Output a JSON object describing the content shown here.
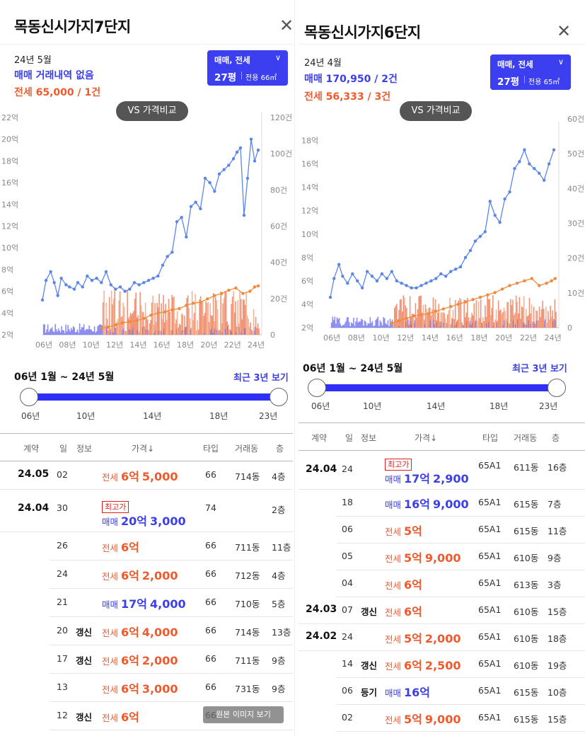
{
  "left": {
    "title": "목동신시가지7단지",
    "close_glyph": "✕",
    "month": "24년 5월",
    "sale_line": "매매 거래내역 없음",
    "jeonse_line": "전세 65,000 / 1건",
    "type_box": {
      "deal": "매매, 전세",
      "size": "27평",
      "area": "전용 66㎡"
    },
    "vs_button": "VS 가격비교",
    "range_label": "06년 1월 ~ 24년 5월",
    "recent_link": "최근 3년 보기",
    "slider_ticks": [
      "06년",
      "10년",
      "14년",
      "18년",
      "23년"
    ],
    "headers": [
      "계약",
      "일",
      "정보",
      "가격↓",
      "타입",
      "거래동",
      "층"
    ],
    "rows": [
      {
        "date": "24.05",
        "day": "02",
        "info": "",
        "kind": "전세",
        "big": "6억",
        "small": "5,000",
        "type": "66",
        "bldg": "714동",
        "floor": "4층",
        "max": ""
      },
      {
        "date": "24.04",
        "day": "30",
        "info": "",
        "kind": "매매",
        "big": "20억",
        "small": "3,000",
        "type": "74",
        "bldg": "",
        "floor": "2층",
        "max": "최고가"
      },
      {
        "date": "",
        "day": "26",
        "info": "",
        "kind": "전세",
        "big": "6억",
        "small": "",
        "type": "66",
        "bldg": "711동",
        "floor": "11층",
        "max": ""
      },
      {
        "date": "",
        "day": "24",
        "info": "",
        "kind": "전세",
        "big": "6억",
        "small": "2,000",
        "type": "66",
        "bldg": "712동",
        "floor": "4층",
        "max": ""
      },
      {
        "date": "",
        "day": "21",
        "info": "",
        "kind": "매매",
        "big": "17억",
        "small": "4,000",
        "type": "66",
        "bldg": "710동",
        "floor": "5층",
        "max": ""
      },
      {
        "date": "",
        "day": "20",
        "info": "갱신",
        "kind": "전세",
        "big": "6억",
        "small": "4,000",
        "type": "66",
        "bldg": "714동",
        "floor": "13층",
        "max": ""
      },
      {
        "date": "",
        "day": "17",
        "info": "갱신",
        "kind": "전세",
        "big": "6억",
        "small": "2,000",
        "type": "66",
        "bldg": "711동",
        "floor": "9층",
        "max": ""
      },
      {
        "date": "",
        "day": "13",
        "info": "",
        "kind": "전세",
        "big": "6억",
        "small": "3,000",
        "type": "66",
        "bldg": "731동",
        "floor": "9층",
        "max": ""
      },
      {
        "date": "",
        "day": "12",
        "info": "갱신",
        "kind": "전세",
        "big": "6억",
        "small": "",
        "type": "66",
        "bldg": "",
        "floor": "",
        "max": ""
      }
    ],
    "toast": "원본 이미지 보기"
  },
  "right": {
    "title": "목동신시가지6단지",
    "close_glyph": "✕",
    "month": "24년 4월",
    "sale_line": "매매 170,950 / 2건",
    "jeonse_line": "전세 56,333 / 3건",
    "type_box": {
      "deal": "매매, 전세",
      "size": "27평",
      "area": "전용 65㎡"
    },
    "vs_button": "VS 가격비교",
    "range_label": "06년 1월 ~ 24년 5월",
    "recent_link": "최근 3년 보기",
    "slider_ticks": [
      "06년",
      "10년",
      "14년",
      "18년",
      "23년"
    ],
    "headers": [
      "계약",
      "일",
      "정보",
      "가격↓",
      "타입",
      "거래동",
      "층"
    ],
    "rows": [
      {
        "date": "24.04",
        "day": "24",
        "info": "",
        "kind": "매매",
        "big": "17억",
        "small": "2,900",
        "type": "65A1",
        "bldg": "611동",
        "floor": "16층",
        "max": "최고가"
      },
      {
        "date": "",
        "day": "18",
        "info": "",
        "kind": "매매",
        "big": "16억",
        "small": "9,000",
        "type": "65A1",
        "bldg": "615동",
        "floor": "7층",
        "max": ""
      },
      {
        "date": "",
        "day": "06",
        "info": "",
        "kind": "전세",
        "big": "5억",
        "small": "",
        "type": "65A1",
        "bldg": "615동",
        "floor": "11층",
        "max": ""
      },
      {
        "date": "",
        "day": "05",
        "info": "",
        "kind": "전세",
        "big": "5억",
        "small": "9,000",
        "type": "65A1",
        "bldg": "610동",
        "floor": "9층",
        "max": ""
      },
      {
        "date": "",
        "day": "04",
        "info": "",
        "kind": "전세",
        "big": "6억",
        "small": "",
        "type": "65A1",
        "bldg": "613동",
        "floor": "3층",
        "max": ""
      },
      {
        "date": "24.03",
        "day": "07",
        "info": "갱신",
        "kind": "전세",
        "big": "6억",
        "small": "",
        "type": "65A1",
        "bldg": "610동",
        "floor": "15층",
        "max": ""
      },
      {
        "date": "24.02",
        "day": "24",
        "info": "",
        "kind": "전세",
        "big": "5억",
        "small": "2,000",
        "type": "65A1",
        "bldg": "610동",
        "floor": "18층",
        "max": ""
      },
      {
        "date": "",
        "day": "14",
        "info": "갱신",
        "kind": "전세",
        "big": "6억",
        "small": "2,500",
        "type": "65A1",
        "bldg": "610동",
        "floor": "19층",
        "max": ""
      },
      {
        "date": "",
        "day": "06",
        "info": "등기",
        "kind": "매매",
        "big": "16억",
        "small": "",
        "type": "65A1",
        "bldg": "615동",
        "floor": "10층",
        "max": ""
      },
      {
        "date": "",
        "day": "02",
        "info": "",
        "kind": "전세",
        "big": "5억",
        "small": "9,000",
        "type": "65A1",
        "bldg": "615동",
        "floor": "15층",
        "max": ""
      }
    ]
  },
  "chart_data": [
    {
      "type": "line",
      "title": "목동신시가지7단지",
      "x_ticks": [
        "06년",
        "08년",
        "10년",
        "12년",
        "14년",
        "16년",
        "18년",
        "20년",
        "22년",
        "24년"
      ],
      "y_left_ticks": [
        "2억",
        "4억",
        "6억",
        "8억",
        "10억",
        "12억",
        "14억",
        "16억",
        "18억",
        "20억",
        "22억"
      ],
      "y_right_ticks": [
        "0",
        "20건",
        "40건",
        "60건",
        "80건",
        "100건",
        "120건"
      ],
      "ylim": [
        2,
        22
      ],
      "y2lim": [
        0,
        120
      ],
      "series": [
        {
          "name": "매매",
          "color": "#5b86e8",
          "x": [
            2006.0,
            2006.3,
            2006.7,
            2007.0,
            2007.3,
            2007.6,
            2008.0,
            2008.3,
            2008.7,
            2009.0,
            2009.4,
            2009.8,
            2010.2,
            2010.6,
            2011.0,
            2011.4,
            2011.8,
            2012.2,
            2012.6,
            2013.0,
            2013.4,
            2013.8,
            2014.2,
            2014.6,
            2015.0,
            2015.4,
            2015.8,
            2016.2,
            2016.6,
            2017.0,
            2017.4,
            2017.8,
            2018.2,
            2018.6,
            2019.0,
            2019.4,
            2019.8,
            2020.2,
            2020.6,
            2021.0,
            2021.4,
            2021.8,
            2022.2,
            2022.5,
            2022.8,
            2023.1,
            2023.4,
            2023.7,
            2024.0,
            2024.3
          ],
          "values": [
            5.2,
            7.0,
            7.8,
            6.8,
            5.6,
            7.2,
            6.6,
            6.4,
            6.2,
            6.8,
            6.4,
            7.4,
            7.0,
            7.2,
            6.8,
            7.8,
            6.6,
            6.2,
            6.4,
            6.0,
            6.2,
            6.8,
            6.6,
            6.8,
            7.0,
            7.2,
            7.4,
            8.4,
            9.2,
            9.6,
            12.4,
            12.8,
            11.0,
            13.8,
            14.2,
            13.6,
            16.4,
            16.0,
            15.2,
            16.8,
            17.2,
            17.6,
            18.2,
            18.8,
            19.2,
            13.0,
            16.4,
            20.0,
            18.0,
            19.0
          ]
        },
        {
          "name": "전세",
          "color": "#f08a3c",
          "x": [
            2011.0,
            2011.6,
            2012.2,
            2012.8,
            2013.4,
            2014.0,
            2014.6,
            2015.2,
            2015.8,
            2016.4,
            2017.0,
            2017.6,
            2018.2,
            2018.8,
            2019.4,
            2020.0,
            2020.6,
            2021.2,
            2021.8,
            2022.4,
            2023.0,
            2023.6,
            2024.0,
            2024.3
          ],
          "values": [
            2.6,
            2.7,
            2.9,
            3.1,
            3.2,
            3.3,
            3.5,
            3.8,
            4.0,
            4.1,
            4.3,
            4.4,
            4.7,
            4.9,
            5.0,
            5.3,
            5.6,
            5.8,
            6.1,
            6.3,
            5.8,
            6.0,
            6.4,
            6.5
          ]
        }
      ]
    },
    {
      "type": "line",
      "title": "목동신시가지6단지",
      "x_ticks": [
        "06년",
        "08년",
        "10년",
        "12년",
        "14년",
        "16년",
        "18년",
        "20년",
        "22년",
        "24년"
      ],
      "y_left_ticks": [
        "2억",
        "4억",
        "6억",
        "8억",
        "10억",
        "12억",
        "14억",
        "16억",
        "18억"
      ],
      "y_right_ticks": [
        "0",
        "10건",
        "20건",
        "30건",
        "40건",
        "50건",
        "60건"
      ],
      "ylim": [
        2,
        19
      ],
      "y2lim": [
        0,
        60
      ],
      "series": [
        {
          "name": "매매",
          "color": "#5b86e8",
          "x": [
            2006.0,
            2006.3,
            2006.7,
            2007.0,
            2007.4,
            2007.8,
            2008.2,
            2008.6,
            2009.0,
            2009.4,
            2009.8,
            2010.2,
            2010.6,
            2011.0,
            2011.4,
            2011.8,
            2012.2,
            2012.6,
            2013.0,
            2013.4,
            2013.8,
            2014.2,
            2014.6,
            2015.0,
            2015.4,
            2015.8,
            2016.2,
            2016.6,
            2017.0,
            2017.4,
            2017.8,
            2018.2,
            2018.6,
            2019.0,
            2019.4,
            2019.8,
            2020.2,
            2020.6,
            2021.0,
            2021.4,
            2021.8,
            2022.2,
            2022.6,
            2023.0,
            2023.4,
            2023.8,
            2024.2
          ],
          "values": [
            4.6,
            6.2,
            7.4,
            6.4,
            5.8,
            6.6,
            6.0,
            5.4,
            6.8,
            6.4,
            6.0,
            6.6,
            6.2,
            6.8,
            6.0,
            5.8,
            5.6,
            5.4,
            5.4,
            5.6,
            5.8,
            6.0,
            6.2,
            6.6,
            6.4,
            6.8,
            7.0,
            7.2,
            8.0,
            8.6,
            9.4,
            9.8,
            10.2,
            12.8,
            11.6,
            11.0,
            13.0,
            13.6,
            15.6,
            16.2,
            17.2,
            16.0,
            15.6,
            15.2,
            14.6,
            16.0,
            17.2
          ]
        },
        {
          "name": "전세",
          "color": "#f08a3c",
          "x": [
            2011.0,
            2011.6,
            2012.2,
            2012.8,
            2013.4,
            2014.0,
            2014.6,
            2015.2,
            2015.8,
            2016.4,
            2017.0,
            2017.6,
            2018.2,
            2018.8,
            2019.4,
            2020.0,
            2020.6,
            2021.2,
            2021.8,
            2022.4,
            2023.0,
            2023.6,
            2024.0,
            2024.3
          ],
          "values": [
            2.4,
            2.6,
            2.8,
            3.0,
            3.1,
            3.2,
            3.4,
            3.6,
            3.8,
            4.0,
            4.2,
            4.4,
            4.6,
            4.8,
            5.0,
            5.3,
            5.6,
            5.8,
            6.0,
            6.2,
            5.6,
            5.8,
            6.0,
            6.2
          ]
        }
      ]
    }
  ]
}
